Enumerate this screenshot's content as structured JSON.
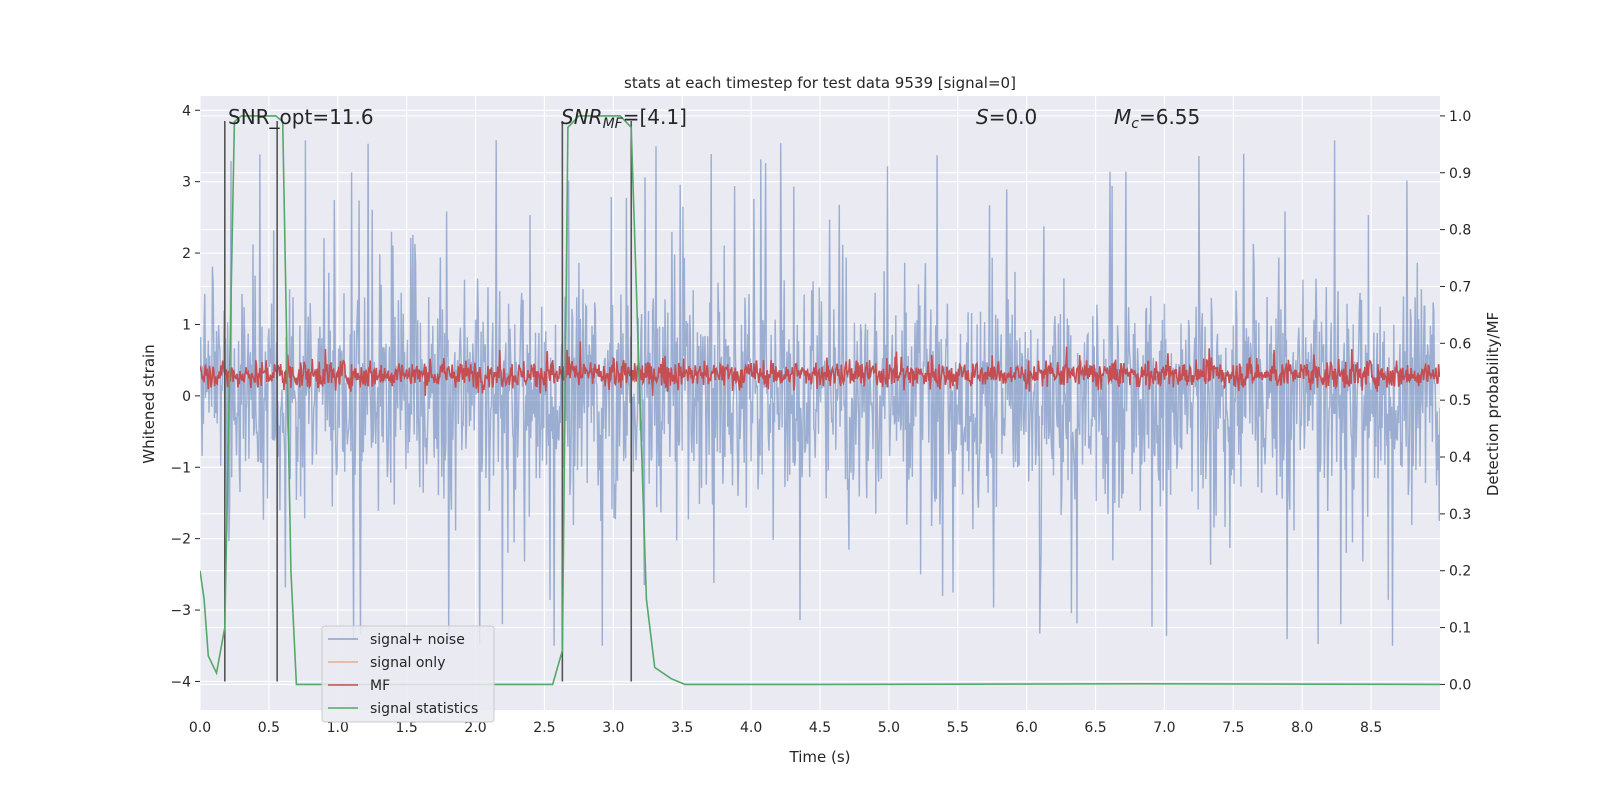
{
  "chart_data": {
    "type": "line",
    "title": "stats at each timestep for test data 9539 [signal=0]",
    "xlabel": "Time (s)",
    "ylabel_left": "Whitened strain",
    "ylabel_right": "Detection probability/MF",
    "xlim": [
      0.0,
      9.0
    ],
    "ylim_left": [
      -4.4,
      4.2
    ],
    "ylim_right": [
      -0.045,
      1.035
    ],
    "x_ticks": [
      "0.0",
      "0.5",
      "1.0",
      "1.5",
      "2.0",
      "2.5",
      "3.0",
      "3.5",
      "4.0",
      "4.5",
      "5.0",
      "5.5",
      "6.0",
      "6.5",
      "7.0",
      "7.5",
      "8.0",
      "8.5"
    ],
    "y_ticks_left": [
      "4",
      "3",
      "2",
      "1",
      "0",
      "−1",
      "−2",
      "−3",
      "−4"
    ],
    "y_ticks_right": [
      "1.0",
      "0.9",
      "0.8",
      "0.7",
      "0.6",
      "0.5",
      "0.4",
      "0.3",
      "0.2",
      "0.1",
      "0.0"
    ],
    "grid": true,
    "legend_placement": "lower-left",
    "annotations": {
      "snr_opt": "SNR_opt=11.6",
      "snr_mf_main": "SNR",
      "snr_mf_sub": "MF",
      "snr_mf_value": "=[4.1]",
      "s_main": "S",
      "s_value": "=0.0",
      "mc_main": "M",
      "mc_sub": "c",
      "mc_value": "=6.55"
    },
    "colors": {
      "background": "#eaeaf2",
      "grid": "#ffffff",
      "signal_noise": "#4c72b0",
      "signal_only": "#dd8452",
      "mf": "#c44e52",
      "signal_statistics": "#55a868",
      "markers": "#555555"
    },
    "series": [
      {
        "name": "signal+ noise",
        "axis": "left",
        "sample_step_s": 0.005,
        "approx_min": -3.5,
        "approx_max": 3.9,
        "envelope": [
          {
            "level": 1.5,
            "upper": 2.1,
            "lower": -1.7
          }
        ],
        "rendering": "dense noise"
      },
      {
        "name": "signal only",
        "axis": "left",
        "values": []
      },
      {
        "name": "MF",
        "axis": "left",
        "center": 0.3,
        "approx_min": 0.0,
        "approx_max": 0.98,
        "rendering": "dense noise"
      },
      {
        "name": "signal statistics",
        "axis": "right",
        "x": [
          0.0,
          0.03,
          0.06,
          0.12,
          0.18,
          0.25,
          0.3,
          0.35,
          0.55,
          0.6,
          0.66,
          0.7,
          0.8,
          2.0,
          2.56,
          2.63,
          2.67,
          2.75,
          3.05,
          3.13,
          3.18,
          3.24,
          3.3,
          3.42,
          3.52,
          4.5,
          6.8,
          9.0
        ],
        "y": [
          0.2,
          0.15,
          0.05,
          0.02,
          0.1,
          0.99,
          1.0,
          1.0,
          1.0,
          0.99,
          0.2,
          0.0,
          0.0,
          0.0,
          0.0,
          0.06,
          0.98,
          1.0,
          1.0,
          0.98,
          0.6,
          0.15,
          0.03,
          0.01,
          0.0,
          0.0,
          0.001,
          0.0
        ]
      }
    ],
    "vertical_markers": [
      {
        "x": 0.18,
        "y0": -4.0,
        "y1": 3.85
      },
      {
        "x": 0.56,
        "y0": -4.0,
        "y1": 3.85
      },
      {
        "x": 2.63,
        "y0": -4.0,
        "y1": 3.85
      },
      {
        "x": 3.13,
        "y0": -4.0,
        "y1": 3.85
      }
    ]
  }
}
